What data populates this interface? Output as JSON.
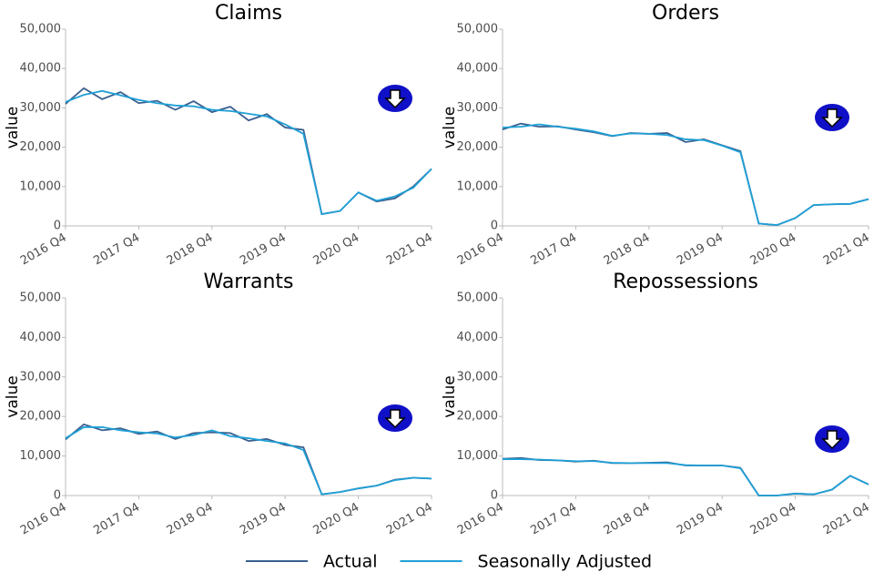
{
  "chart_data": [
    {
      "type": "line",
      "title": "Claims",
      "ylabel": "value",
      "categories": [
        "2016 Q4",
        null,
        null,
        null,
        "2017 Q4",
        null,
        null,
        null,
        "2018 Q4",
        null,
        null,
        null,
        "2019 Q4",
        null,
        null,
        null,
        "2020 Q4",
        null,
        null,
        null,
        "2021 Q4"
      ],
      "series": [
        {
          "name": "Actual",
          "color": "#3a5f8f",
          "values": [
            31000,
            35000,
            32200,
            34000,
            31200,
            31800,
            29500,
            31700,
            28900,
            30300,
            26800,
            28400,
            25000,
            24400,
            3000,
            3800,
            8500,
            6200,
            7000,
            10000,
            14500
          ]
        },
        {
          "name": "Seasonally Adjusted",
          "color": "#1fa0d6",
          "values": [
            31500,
            33300,
            34300,
            33200,
            32000,
            31200,
            30600,
            30400,
            29500,
            29200,
            28500,
            27800,
            25800,
            23400,
            3000,
            3800,
            8500,
            6400,
            7500,
            9700,
            14500
          ]
        }
      ],
      "ylim": [
        0,
        50000
      ],
      "yticks": [
        0,
        {
          "value": 10000,
          "label": "10,000"
        },
        {
          "value": 20000,
          "label": "20,000"
        },
        {
          "value": 30000,
          "label": "30,000"
        },
        {
          "value": 40000,
          "label": "40,000"
        },
        {
          "value": 50000,
          "label": "50,000"
        }
      ]
    },
    {
      "type": "line",
      "title": "Orders",
      "ylabel": "value",
      "categories": [
        "2016 Q4",
        null,
        null,
        null,
        "2017 Q4",
        null,
        null,
        null,
        "2018 Q4",
        null,
        null,
        null,
        "2019 Q4",
        null,
        null,
        null,
        "2020 Q4",
        null,
        null,
        null,
        "2021 Q4"
      ],
      "series": [
        {
          "color": "#3a5f8f",
          "values": [
            24500,
            26000,
            25200,
            25300,
            24500,
            23800,
            22800,
            23600,
            23400,
            23600,
            21300,
            22000,
            20500,
            19000,
            600,
            200,
            2000,
            5300,
            5500,
            5600,
            6800
          ]
        },
        {
          "color": "#1fa0d6",
          "values": [
            25000,
            25200,
            25800,
            25200,
            24700,
            24000,
            22900,
            23500,
            23400,
            23100,
            22000,
            21800,
            20400,
            18700,
            600,
            200,
            2000,
            5300,
            5500,
            5600,
            6800
          ]
        }
      ],
      "ylim": [
        0,
        50000
      ],
      "yticks": [
        0,
        {
          "value": 10000,
          "label": "10,000"
        },
        {
          "value": 20000,
          "label": "20,000"
        },
        {
          "value": 30000,
          "label": "30,000"
        },
        {
          "value": 40000,
          "label": "40,000"
        },
        {
          "value": 50000,
          "label": "50,000"
        }
      ]
    },
    {
      "type": "line",
      "title": "Warrants",
      "ylabel": "value",
      "categories": [
        "2016 Q4",
        null,
        null,
        null,
        "2017 Q4",
        null,
        null,
        null,
        "2018 Q4",
        null,
        null,
        null,
        "2019 Q4",
        null,
        null,
        null,
        "2020 Q4",
        null,
        null,
        null,
        "2021 Q4"
      ],
      "series": [
        {
          "color": "#3a5f8f",
          "values": [
            14200,
            18000,
            16500,
            17000,
            15600,
            16200,
            14300,
            15800,
            16000,
            15800,
            13800,
            14300,
            12800,
            12200,
            300,
            900,
            1800,
            2500,
            4000,
            4500,
            4300
          ]
        },
        {
          "color": "#1fa0d6",
          "values": [
            14500,
            17300,
            17300,
            16500,
            16000,
            15700,
            14700,
            15300,
            16500,
            15000,
            14500,
            13800,
            13200,
            11500,
            300,
            900,
            1800,
            2500,
            3900,
            4500,
            4300
          ]
        }
      ],
      "ylim": [
        0,
        50000
      ],
      "yticks": [
        0,
        {
          "value": 10000,
          "label": "10,000"
        },
        {
          "value": 20000,
          "label": "20,000"
        },
        {
          "value": 30000,
          "label": "30,000"
        },
        {
          "value": 40000,
          "label": "40,000"
        },
        {
          "value": 50000,
          "label": "50,000"
        }
      ]
    },
    {
      "type": "line",
      "title": "Repossessions",
      "ylabel": "value",
      "categories": [
        "2016 Q4",
        null,
        null,
        null,
        "2017 Q4",
        null,
        null,
        null,
        "2018 Q4",
        null,
        null,
        null,
        "2019 Q4",
        null,
        null,
        null,
        "2020 Q4",
        null,
        null,
        null,
        "2021 Q4"
      ],
      "series": [
        {
          "color": "#3a5f8f",
          "values": [
            9300,
            9500,
            9000,
            8900,
            8600,
            8800,
            8200,
            8200,
            8300,
            8400,
            7600,
            7600,
            7600,
            7000,
            0,
            0,
            500,
            300,
            1500,
            5000,
            2800
          ]
        },
        {
          "color": "#1fa0d6",
          "values": [
            9200,
            9200,
            9100,
            8900,
            8700,
            8700,
            8300,
            8200,
            8200,
            8200,
            7700,
            7600,
            7600,
            6900,
            0,
            0,
            500,
            300,
            1500,
            5000,
            2800
          ]
        }
      ],
      "ylim": [
        0,
        50000
      ],
      "yticks": [
        0,
        {
          "value": 10000,
          "label": "10,000"
        },
        {
          "value": 20000,
          "label": "20,000"
        },
        {
          "value": 30000,
          "label": "30,000"
        },
        {
          "value": 40000,
          "label": "40,000"
        },
        {
          "value": 50000,
          "label": "50,000"
        }
      ]
    }
  ]
}
